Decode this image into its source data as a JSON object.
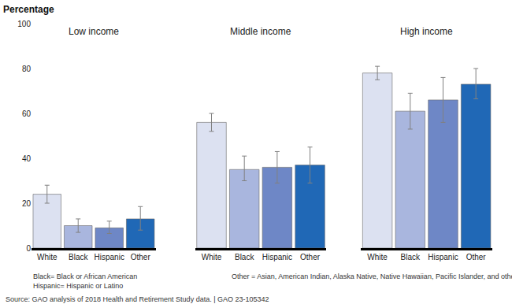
{
  "chart_data": [
    {
      "type": "bar",
      "title": "Low income",
      "y_label": "Percentage",
      "categories": [
        "White",
        "Black",
        "Hispanic",
        "Other"
      ],
      "values": [
        24,
        10,
        9,
        13
      ],
      "error_plus": [
        4,
        3,
        3,
        5.5
      ],
      "error_minus": [
        4,
        3,
        2.5,
        5
      ],
      "colors": [
        "#dce1f1",
        "#a9b6de",
        "#6e87c6",
        "#2068b6"
      ],
      "ylim": [
        0,
        100
      ],
      "yticks": [
        0,
        20,
        40,
        60,
        80,
        100
      ],
      "grid": false
    },
    {
      "type": "bar",
      "title": "Middle income",
      "categories": [
        "White",
        "Black",
        "Hispanic",
        "Other"
      ],
      "values": [
        56,
        35,
        36,
        37
      ],
      "error_plus": [
        4,
        6,
        7,
        8
      ],
      "error_minus": [
        4,
        5,
        7,
        8
      ],
      "colors": [
        "#dce1f1",
        "#a9b6de",
        "#6e87c6",
        "#2068b6"
      ],
      "ylim": [
        0,
        100
      ],
      "yticks": [
        0,
        20,
        40,
        60,
        80,
        100
      ],
      "grid": false,
      "tick_labels": "x"
    },
    {
      "type": "bar",
      "title": "High income",
      "categories": [
        "White",
        "Black",
        "Hispanic",
        "Other"
      ],
      "values": [
        78,
        61,
        66,
        73
      ],
      "error_plus": [
        3,
        8,
        10,
        7
      ],
      "error_minus": [
        3,
        8,
        10,
        6.5
      ],
      "colors": [
        "#dce1f1",
        "#a9b6de",
        "#6e87c6",
        "#2068b6"
      ],
      "ylim": [
        0,
        100
      ],
      "yticks": [
        0,
        20,
        40,
        60,
        80,
        100
      ],
      "grid": false,
      "tick_labels": "x"
    }
  ],
  "notes": [
    [
      "Black= Black or African American",
      "Hispanic= Hispanic or Latino"
    ],
    [
      "Other = Asian, American Indian, Alaska Native, Native Hawaiian, Pacific Islander, and other races"
    ]
  ],
  "source": "Source: GAO analysis of 2018 Health and Retirement Study data. | GAO 23-105342"
}
